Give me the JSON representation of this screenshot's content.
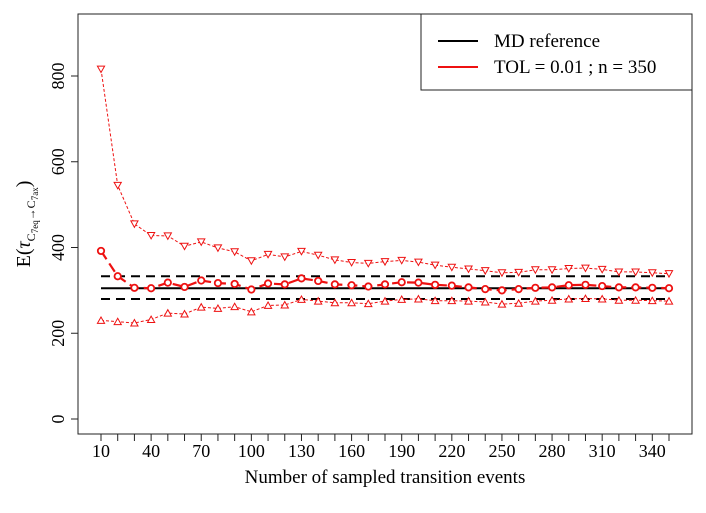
{
  "chart_data": {
    "type": "line",
    "title": "",
    "xlabel": "Number of sampled transition events",
    "ylabel": {
      "prefix": "E(",
      "tau": "τ",
      "sub_from": "C",
      "sub_from_sub": "7eq",
      "arrow": "→",
      "sub_to": "C",
      "sub_to_sub": "7ax",
      "suffix": ")"
    },
    "xlim": [
      0,
      360
    ],
    "ylim": [
      0,
      900
    ],
    "x_tick_labels": [
      "10",
      "40",
      "70",
      "100",
      "130",
      "160",
      "190",
      "220",
      "250",
      "280",
      "310",
      "340"
    ],
    "y_tick_labels": [
      "0",
      "200",
      "400",
      "600",
      "800"
    ],
    "x_ticks_all": [
      10,
      20,
      30,
      40,
      50,
      60,
      70,
      80,
      90,
      100,
      110,
      120,
      130,
      140,
      150,
      160,
      170,
      180,
      190,
      200,
      210,
      220,
      230,
      240,
      250,
      260,
      270,
      280,
      290,
      300,
      310,
      320,
      330,
      340,
      350
    ],
    "y_ticks": [
      0,
      200,
      400,
      600,
      800
    ],
    "legend": {
      "position": "top-right",
      "entries": [
        {
          "label": "MD reference",
          "color": "#000000"
        },
        {
          "label": "TOL = 0.01 ; n = 350",
          "color": "#ee1111"
        }
      ]
    },
    "reference": {
      "name": "MD reference",
      "mean": 305,
      "lower": 280,
      "upper": 333,
      "color": "#000000"
    },
    "series": {
      "name": "TOL = 0.01 ; n = 350",
      "color": "#ee1111",
      "x": [
        10,
        20,
        30,
        40,
        50,
        60,
        70,
        80,
        90,
        100,
        110,
        120,
        130,
        140,
        150,
        160,
        170,
        180,
        190,
        200,
        210,
        220,
        230,
        240,
        250,
        260,
        270,
        280,
        290,
        300,
        310,
        320,
        330,
        340,
        350
      ],
      "mean": [
        392,
        333,
        306,
        305,
        318,
        308,
        323,
        317,
        315,
        302,
        316,
        314,
        328,
        322,
        314,
        312,
        309,
        314,
        319,
        318,
        313,
        311,
        307,
        303,
        300,
        303,
        306,
        307,
        312,
        313,
        310,
        307,
        307,
        306,
        305
      ],
      "upper": [
        816,
        545,
        455,
        428,
        427,
        403,
        413,
        399,
        390,
        369,
        384,
        378,
        391,
        382,
        371,
        365,
        363,
        367,
        370,
        366,
        359,
        354,
        350,
        346,
        341,
        342,
        348,
        348,
        351,
        352,
        349,
        343,
        343,
        341,
        339
      ],
      "lower": [
        230,
        227,
        224,
        232,
        247,
        245,
        261,
        258,
        262,
        250,
        265,
        266,
        279,
        275,
        271,
        271,
        269,
        275,
        279,
        280,
        276,
        276,
        275,
        273,
        268,
        270,
        275,
        277,
        280,
        281,
        280,
        277,
        277,
        276,
        275
      ]
    }
  }
}
